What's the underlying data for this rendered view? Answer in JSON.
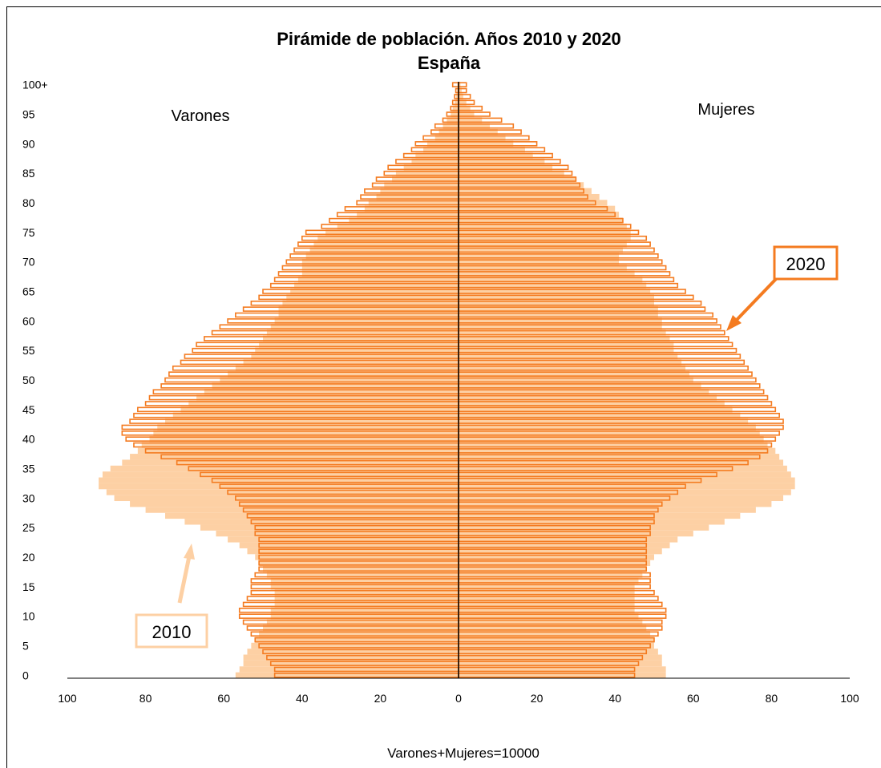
{
  "chart_data": {
    "type": "bar",
    "orientation": "horizontal",
    "title": "Pirámide de población. Años 2010 y 2020",
    "subtitle": "España",
    "xlabel": "Varones+Mujeres=10000",
    "xlim": [
      -100,
      100
    ],
    "x_ticks": [
      -100,
      -80,
      -60,
      -40,
      -20,
      0,
      20,
      40,
      60,
      80,
      100
    ],
    "x_tick_labels": [
      "100",
      "80",
      "60",
      "40",
      "20",
      "0",
      "20",
      "40",
      "60",
      "80",
      "100"
    ],
    "y_tick_labels": [
      "0",
      "5",
      "10",
      "15",
      "20",
      "25",
      "30",
      "35",
      "40",
      "45",
      "50",
      "55",
      "60",
      "65",
      "70",
      "75",
      "80",
      "85",
      "90",
      "95",
      "100+"
    ],
    "y_ticks": [
      0,
      5,
      10,
      15,
      20,
      25,
      30,
      35,
      40,
      45,
      50,
      55,
      60,
      65,
      70,
      75,
      80,
      85,
      90,
      95,
      100
    ],
    "side_labels": {
      "left": "Varones",
      "right": "Mujeres"
    },
    "annotations": [
      {
        "text": "2010",
        "series": "2010",
        "color": "#fdd0a4"
      },
      {
        "text": "2020",
        "series": "2020",
        "color": "#f47b20"
      }
    ],
    "ages": [
      0,
      1,
      2,
      3,
      4,
      5,
      6,
      7,
      8,
      9,
      10,
      11,
      12,
      13,
      14,
      15,
      16,
      17,
      18,
      19,
      20,
      21,
      22,
      23,
      24,
      25,
      26,
      27,
      28,
      29,
      30,
      31,
      32,
      33,
      34,
      35,
      36,
      37,
      38,
      39,
      40,
      41,
      42,
      43,
      44,
      45,
      46,
      47,
      48,
      49,
      50,
      51,
      52,
      53,
      54,
      55,
      56,
      57,
      58,
      59,
      60,
      61,
      62,
      63,
      64,
      65,
      66,
      67,
      68,
      69,
      70,
      71,
      72,
      73,
      74,
      75,
      76,
      77,
      78,
      79,
      80,
      81,
      82,
      83,
      84,
      85,
      86,
      87,
      88,
      89,
      90,
      91,
      92,
      93,
      94,
      95,
      96,
      97,
      98,
      99,
      100
    ],
    "series": [
      {
        "name": "2010",
        "color": "#fdd0a4",
        "style": "filled",
        "males": [
          57,
          56,
          55,
          55,
          54,
          53,
          52,
          51,
          50,
          49,
          48,
          48,
          47,
          47,
          47,
          48,
          48,
          49,
          50,
          51,
          52,
          54,
          56,
          59,
          62,
          66,
          70,
          75,
          80,
          84,
          88,
          90,
          92,
          92,
          91,
          89,
          86,
          84,
          82,
          81,
          79,
          78,
          77,
          75,
          73,
          71,
          69,
          67,
          65,
          63,
          61,
          59,
          57,
          55,
          53,
          52,
          51,
          50,
          49,
          48,
          47,
          46,
          46,
          45,
          44,
          43,
          42,
          41,
          40,
          40,
          40,
          39,
          38,
          37,
          36,
          34,
          31,
          28,
          26,
          24,
          23,
          21,
          20,
          19,
          17,
          16,
          14,
          12,
          11,
          9,
          8,
          6,
          5,
          4,
          3,
          2,
          1.5,
          1,
          0.6,
          0.4,
          0.3
        ],
        "females": [
          53,
          53,
          52,
          52,
          51,
          50,
          50,
          49,
          48,
          47,
          46,
          45,
          45,
          45,
          45,
          45,
          46,
          47,
          48,
          49,
          50,
          52,
          54,
          56,
          60,
          64,
          68,
          72,
          76,
          80,
          83,
          85,
          86,
          86,
          85,
          84,
          83,
          82,
          81,
          79,
          78,
          77,
          76,
          74,
          72,
          70,
          68,
          66,
          64,
          62,
          60,
          59,
          58,
          57,
          56,
          55,
          55,
          54,
          53,
          52,
          52,
          51,
          51,
          50,
          50,
          49,
          48,
          47,
          45,
          43,
          41,
          41,
          42,
          43,
          44,
          44,
          43,
          42,
          41,
          40,
          38,
          36,
          34,
          32,
          30,
          27,
          24,
          22,
          19,
          17,
          14,
          12,
          10,
          8,
          6,
          4,
          3,
          2,
          1.2,
          0.8,
          0.5
        ]
      },
      {
        "name": "2020",
        "color": "#f47b20",
        "style": "outline",
        "males": [
          47,
          47,
          48,
          49,
          50,
          51,
          52,
          53,
          54,
          55,
          56,
          56,
          55,
          54,
          53,
          53,
          53,
          52,
          51,
          51,
          51,
          51,
          51,
          51,
          52,
          52,
          53,
          54,
          55,
          56,
          57,
          59,
          61,
          63,
          66,
          69,
          72,
          76,
          80,
          83,
          85,
          86,
          86,
          84,
          83,
          82,
          80,
          79,
          78,
          76,
          75,
          74,
          73,
          71,
          70,
          68,
          67,
          65,
          63,
          61,
          59,
          57,
          55,
          53,
          51,
          50,
          48,
          47,
          46,
          45,
          44,
          43,
          42,
          41,
          40,
          39,
          35,
          33,
          31,
          29,
          26,
          25,
          24,
          22,
          21,
          19,
          18,
          16,
          14,
          12,
          11,
          9,
          7,
          6,
          4,
          3,
          2,
          1.5,
          1,
          0.7,
          1.5
        ],
        "females": [
          45,
          45,
          46,
          47,
          48,
          49,
          50,
          51,
          52,
          52,
          53,
          53,
          52,
          51,
          50,
          49,
          49,
          49,
          48,
          48,
          48,
          48,
          48,
          48,
          49,
          49,
          50,
          50,
          51,
          52,
          54,
          56,
          58,
          62,
          66,
          70,
          74,
          77,
          79,
          80,
          81,
          82,
          83,
          83,
          82,
          81,
          80,
          79,
          78,
          77,
          76,
          75,
          74,
          73,
          72,
          71,
          70,
          69,
          68,
          67,
          66,
          65,
          63,
          62,
          60,
          58,
          56,
          55,
          54,
          53,
          52,
          51,
          50,
          49,
          48,
          46,
          44,
          42,
          40,
          38,
          35,
          33,
          32,
          31,
          30,
          29,
          28,
          26,
          24,
          22,
          20,
          18,
          16,
          14,
          11,
          8,
          6,
          4,
          3,
          2,
          2
        ]
      }
    ]
  }
}
